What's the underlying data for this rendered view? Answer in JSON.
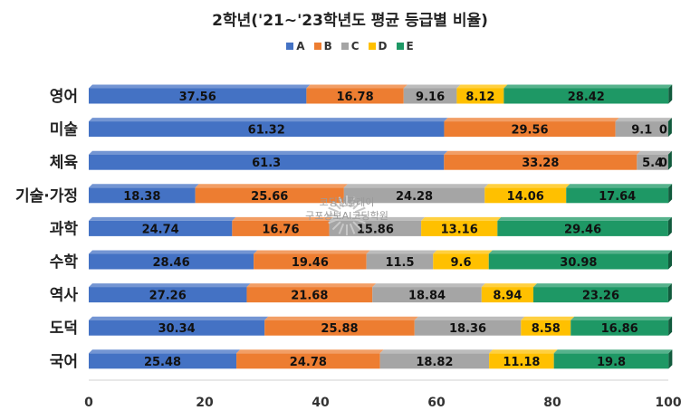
{
  "chart_data": {
    "type": "bar",
    "orientation": "horizontal",
    "stacked": true,
    "title": "2학년('21~'23학년도 평균 등급별 비율)",
    "categories": [
      "영어",
      "미술",
      "체육",
      "기술·가정",
      "과학",
      "수학",
      "역사",
      "도덕",
      "국어"
    ],
    "series": [
      {
        "name": "A",
        "color": "#4472c4",
        "values": [
          37.56,
          61.32,
          61.3,
          18.38,
          24.74,
          28.46,
          27.26,
          30.34,
          25.48
        ]
      },
      {
        "name": "B",
        "color": "#ed7d31",
        "values": [
          16.78,
          29.56,
          33.28,
          25.66,
          16.76,
          19.46,
          21.68,
          25.88,
          24.78
        ]
      },
      {
        "name": "C",
        "color": "#a5a5a5",
        "values": [
          9.16,
          9.1,
          5.4,
          24.28,
          15.86,
          11.5,
          18.84,
          18.36,
          18.82
        ]
      },
      {
        "name": "D",
        "color": "#ffc000",
        "values": [
          8.12,
          0,
          0,
          14.06,
          13.16,
          9.6,
          8.94,
          8.58,
          11.18
        ]
      },
      {
        "name": "E",
        "color": "#1e9865",
        "values": [
          28.42,
          0,
          0,
          17.64,
          29.46,
          30.98,
          23.26,
          16.86,
          19.8
        ]
      }
    ],
    "data_labels": [
      [
        "37.56",
        "16.78",
        "9.16",
        "8.12",
        "28.42"
      ],
      [
        "61.32",
        "29.56",
        "9.1",
        "0",
        ""
      ],
      [
        "61.3",
        "33.28",
        "5.4",
        "0",
        ""
      ],
      [
        "18.38",
        "25.66",
        "24.28",
        "14.06",
        "17.64"
      ],
      [
        "24.74",
        "16.76",
        "15.86",
        "13.16",
        "29.46"
      ],
      [
        "28.46",
        "19.46",
        "11.5",
        "9.6",
        "30.98"
      ],
      [
        "27.26",
        "21.68",
        "18.84",
        "8.94",
        "23.26"
      ],
      [
        "30.34",
        "25.88",
        "18.36",
        "8.58",
        "16.86"
      ],
      [
        "25.48",
        "24.78",
        "18.82",
        "11.18",
        "19.8"
      ]
    ],
    "xlim": [
      0,
      100
    ],
    "xticks": [
      0,
      20,
      40,
      60,
      80,
      100
    ],
    "legend": "top-center",
    "grid": false
  },
  "watermark": {
    "line1": "코딩앤플레이",
    "line2": "구포상보AI코딩학원"
  }
}
